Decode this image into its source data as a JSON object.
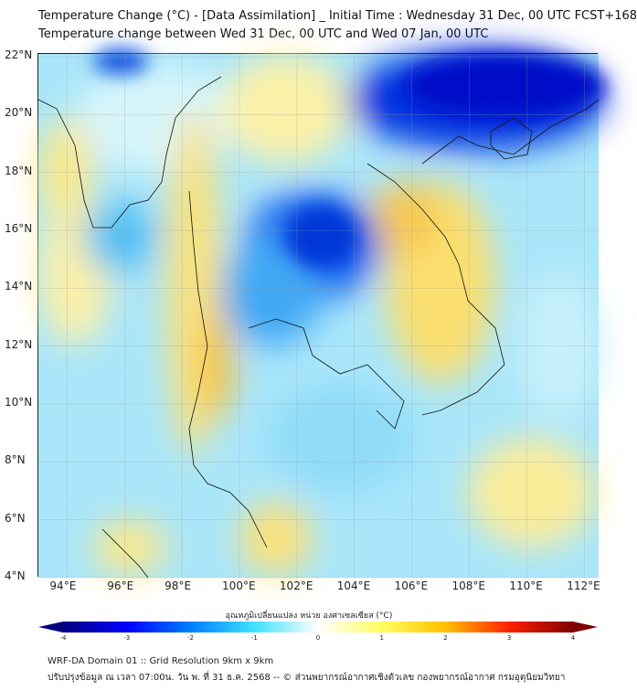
{
  "title": {
    "line1": "Temperature Change (°C) - [Data Assimilation] _ Initial Time : Wednesday 31 Dec, 00 UTC FCST+168",
    "line2": "Temperature change between Wed 31 Dec, 00 UTC and Wed 07 Jan, 00 UTC"
  },
  "map": {
    "lon_labels": [
      "94°E",
      "96°E",
      "98°E",
      "100°E",
      "102°E",
      "104°E",
      "106°E",
      "108°E",
      "110°E",
      "112°E"
    ],
    "lat_labels": [
      "22°N",
      "20°N",
      "18°N",
      "16°N",
      "14°N",
      "12°N",
      "10°N",
      "8°N",
      "6°N",
      "4°N"
    ],
    "extent": {
      "lon": [
        93,
        112.5
      ],
      "lat": [
        4,
        22.1
      ]
    }
  },
  "colorbar": {
    "label": "อุณหภูมิเปลี่ยนแปลง หน่วย องศาเซลเซียส (°C)",
    "ticks": [
      "-4",
      "-3",
      "-2",
      "-1",
      "0",
      "1",
      "2",
      "3",
      "4"
    ],
    "range": [
      -4,
      4
    ],
    "colors": [
      "#00007f",
      "#0000ff",
      "#0080ff",
      "#40e0ff",
      "#ffffff",
      "#ffff60",
      "#ffc000",
      "#ff2000",
      "#7f0000"
    ]
  },
  "footer": {
    "line1": "WRF-DA Domain 01 :: Grid Resolution 9km x 9km",
    "line2": "ปรับปรุงข้อมูล ณ เวลา 07:00น. วัน พ. ที่ 31 ธ.ค. 2568 -- © ส่วนพยากรณ์อากาศเชิงตัวเลข กองพยากรณ์อากาศ กรมอุตุนิยมวิทยา"
  }
}
